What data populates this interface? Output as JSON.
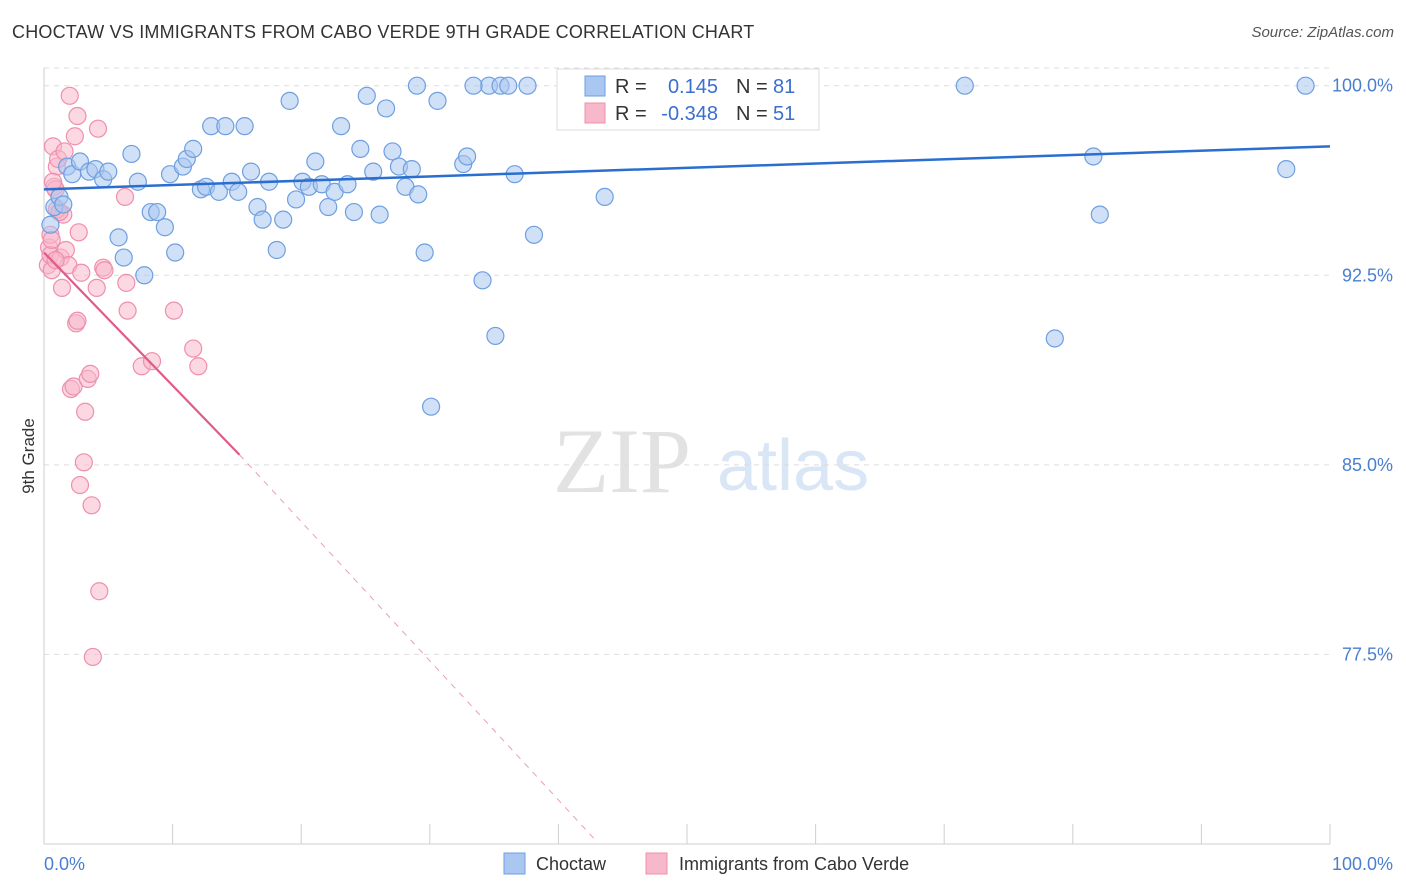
{
  "header": {
    "title": "CHOCTAW VS IMMIGRANTS FROM CABO VERDE 9TH GRADE CORRELATION CHART",
    "source": "Source: ZipAtlas.com"
  },
  "watermark": {
    "zip": "ZIP",
    "atlas": "atlas"
  },
  "colors": {
    "blue_fill": "#a9c7f0",
    "blue_stroke": "#6e9fe0",
    "blue_line": "#2a6fd0",
    "pink_fill": "#f7b8cb",
    "pink_stroke": "#ef8fae",
    "pink_line": "#e05a8a",
    "grid": "#dddddd",
    "axis_text": "#4a7fcf"
  },
  "stats": {
    "r_label": "R =",
    "n_label": "N =",
    "choctaw": {
      "r": "0.145",
      "n": "81"
    },
    "cabo_verde": {
      "r": "-0.348",
      "n": "51"
    }
  },
  "chart_data": {
    "type": "scatter",
    "title": "CHOCTAW VS IMMIGRANTS FROM CABO VERDE 9TH GRADE CORRELATION CHART",
    "xlabel": "",
    "ylabel": "9th Grade",
    "xlim": [
      0,
      100
    ],
    "ylim": [
      70,
      100.7
    ],
    "x_tick_labels": {
      "left": "0.0%",
      "right": "100.0%"
    },
    "y_ticks": [
      {
        "value": 100.0,
        "label": "100.0%"
      },
      {
        "value": 92.5,
        "label": "92.5%"
      },
      {
        "value": 85.0,
        "label": "85.0%"
      },
      {
        "value": 77.5,
        "label": "77.5%"
      }
    ],
    "legend": [
      "Choctaw",
      "Immigrants from Cabo Verde"
    ],
    "series": [
      {
        "name": "Choctaw",
        "color": "blue",
        "trend": {
          "x0": 0,
          "y0": 95.9,
          "x1": 100,
          "y1": 97.6
        },
        "points": [
          [
            0.5,
            94.5
          ],
          [
            0.8,
            95.2
          ],
          [
            1.2,
            95.6
          ],
          [
            1.5,
            95.3
          ],
          [
            1.8,
            96.8
          ],
          [
            2.2,
            96.5
          ],
          [
            2.8,
            97.0
          ],
          [
            3.5,
            96.6
          ],
          [
            4.0,
            96.7
          ],
          [
            4.6,
            96.3
          ],
          [
            5.0,
            96.6
          ],
          [
            5.8,
            94.0
          ],
          [
            6.2,
            93.2
          ],
          [
            6.8,
            97.3
          ],
          [
            7.3,
            96.2
          ],
          [
            7.8,
            92.5
          ],
          [
            8.3,
            95.0
          ],
          [
            8.8,
            95.0
          ],
          [
            9.4,
            94.4
          ],
          [
            9.8,
            96.5
          ],
          [
            10.2,
            93.4
          ],
          [
            10.8,
            96.8
          ],
          [
            11.1,
            97.1
          ],
          [
            11.6,
            97.5
          ],
          [
            12.2,
            95.9
          ],
          [
            12.6,
            96.0
          ],
          [
            13.0,
            98.4
          ],
          [
            13.6,
            95.8
          ],
          [
            14.1,
            98.4
          ],
          [
            14.6,
            96.2
          ],
          [
            15.1,
            95.8
          ],
          [
            15.6,
            98.4
          ],
          [
            16.1,
            96.6
          ],
          [
            16.6,
            95.2
          ],
          [
            17.0,
            94.7
          ],
          [
            17.5,
            96.2
          ],
          [
            18.1,
            93.5
          ],
          [
            18.6,
            94.7
          ],
          [
            19.1,
            99.4
          ],
          [
            19.6,
            95.5
          ],
          [
            20.1,
            96.2
          ],
          [
            20.6,
            96.0
          ],
          [
            21.1,
            97.0
          ],
          [
            21.6,
            96.1
          ],
          [
            22.1,
            95.2
          ],
          [
            22.6,
            95.8
          ],
          [
            23.1,
            98.4
          ],
          [
            23.6,
            96.1
          ],
          [
            24.1,
            95.0
          ],
          [
            24.6,
            97.5
          ],
          [
            25.1,
            99.6
          ],
          [
            25.6,
            96.6
          ],
          [
            26.1,
            94.9
          ],
          [
            26.6,
            99.1
          ],
          [
            27.1,
            97.4
          ],
          [
            27.6,
            96.8
          ],
          [
            28.1,
            96.0
          ],
          [
            28.6,
            96.7
          ],
          [
            29.1,
            95.7
          ],
          [
            29.6,
            93.4
          ],
          [
            30.1,
            87.3
          ],
          [
            30.6,
            99.4
          ],
          [
            32.6,
            96.9
          ],
          [
            32.9,
            97.2
          ],
          [
            34.1,
            92.3
          ],
          [
            34.6,
            100.0
          ],
          [
            35.1,
            90.1
          ],
          [
            35.5,
            100.0
          ],
          [
            36.1,
            100.0
          ],
          [
            36.6,
            96.5
          ],
          [
            37.6,
            100.0
          ],
          [
            38.1,
            94.1
          ],
          [
            43.6,
            95.6
          ],
          [
            29.0,
            100.0
          ],
          [
            33.4,
            100.0
          ],
          [
            45.6,
            100.0
          ],
          [
            71.6,
            100.0
          ],
          [
            78.6,
            90.0
          ],
          [
            81.6,
            97.2
          ],
          [
            82.1,
            94.9
          ],
          [
            96.6,
            96.7
          ],
          [
            98.1,
            100.0
          ]
        ]
      },
      {
        "name": "Immigrants from Cabo Verde",
        "color": "pink",
        "trend": {
          "x0": 0,
          "y0": 93.4,
          "x1": 15.2,
          "y1": 85.4,
          "dash_x1": 42.8,
          "dash_y1": 70.2
        },
        "points": [
          [
            0.3,
            92.9
          ],
          [
            0.4,
            93.6
          ],
          [
            0.5,
            93.3
          ],
          [
            0.6,
            92.7
          ],
          [
            0.7,
            97.6
          ],
          [
            0.8,
            96.0
          ],
          [
            0.9,
            95.9
          ],
          [
            1.0,
            96.8
          ],
          [
            1.1,
            97.1
          ],
          [
            1.2,
            95.0
          ],
          [
            1.3,
            93.2
          ],
          [
            1.4,
            92.0
          ],
          [
            1.5,
            94.9
          ],
          [
            1.6,
            97.4
          ],
          [
            1.7,
            93.5
          ],
          [
            1.9,
            92.9
          ],
          [
            2.0,
            99.6
          ],
          [
            2.1,
            88.0
          ],
          [
            2.3,
            88.1
          ],
          [
            2.4,
            98.0
          ],
          [
            2.5,
            90.6
          ],
          [
            2.6,
            90.7
          ],
          [
            2.7,
            94.2
          ],
          [
            2.8,
            84.2
          ],
          [
            2.9,
            92.6
          ],
          [
            3.1,
            85.1
          ],
          [
            3.2,
            87.1
          ],
          [
            3.4,
            88.4
          ],
          [
            3.6,
            88.6
          ],
          [
            3.7,
            83.4
          ],
          [
            3.8,
            77.4
          ],
          [
            4.1,
            92.0
          ],
          [
            4.2,
            98.3
          ],
          [
            4.3,
            80.0
          ],
          [
            4.6,
            92.8
          ],
          [
            6.3,
            95.6
          ],
          [
            6.4,
            92.2
          ],
          [
            6.5,
            91.1
          ],
          [
            7.6,
            88.9
          ],
          [
            8.4,
            89.1
          ],
          [
            10.1,
            91.1
          ],
          [
            11.6,
            89.6
          ],
          [
            12.0,
            88.9
          ],
          [
            2.6,
            98.8
          ],
          [
            0.5,
            94.1
          ],
          [
            0.6,
            93.9
          ],
          [
            0.9,
            93.1
          ],
          [
            1.0,
            95.1
          ],
          [
            4.7,
            92.7
          ],
          [
            1.2,
            95.0
          ],
          [
            0.7,
            96.2
          ]
        ]
      }
    ]
  }
}
